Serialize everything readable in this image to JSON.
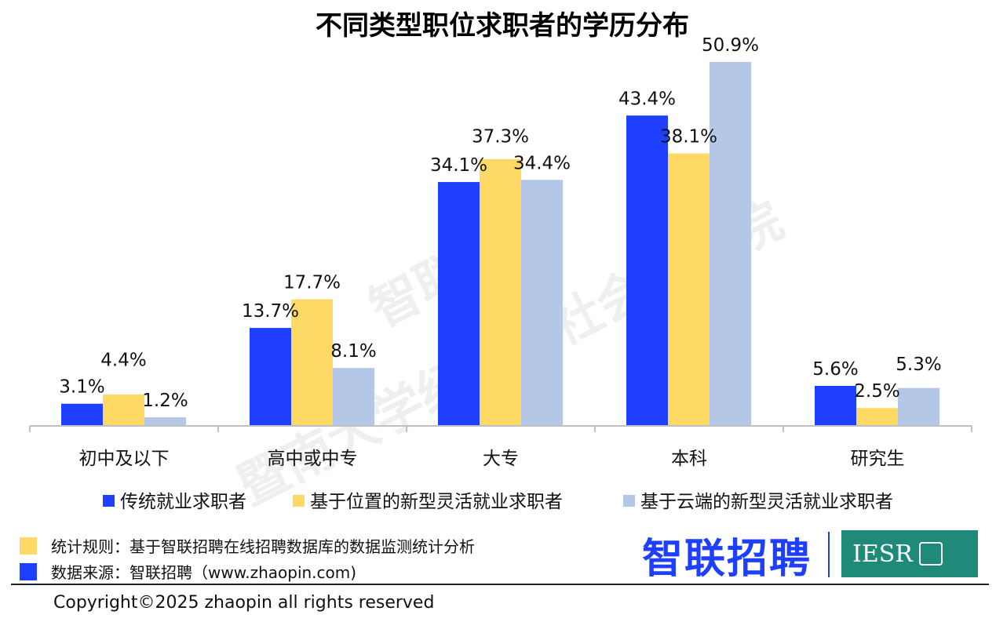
{
  "chart_data": {
    "type": "bar",
    "title": "不同类型职位求职者的学历分布",
    "categories": [
      "初中及以下",
      "高中或中专",
      "大专",
      "本科",
      "研究生"
    ],
    "series": [
      {
        "name": "传统就业求职者",
        "values": [
          3.1,
          13.7,
          34.1,
          43.4,
          5.6
        ],
        "labels": [
          "3.1%",
          "13.7%",
          "34.1%",
          "43.4%",
          "5.6%"
        ],
        "color": "#1f3fff"
      },
      {
        "name": "基于位置的新型灵活就业求职者",
        "values": [
          4.4,
          17.7,
          37.3,
          38.1,
          2.5
        ],
        "labels": [
          "4.4%",
          "17.7%",
          "37.3%",
          "38.1%",
          "2.5%"
        ],
        "color": "#ffd966"
      },
      {
        "name": "基于云端的新型灵活就业求职者",
        "values": [
          1.2,
          8.1,
          34.4,
          50.9,
          5.3
        ],
        "labels": [
          "1.2%",
          "8.1%",
          "34.4%",
          "50.9%",
          "5.3%"
        ],
        "color": "#b4c7e7"
      }
    ],
    "ylim": [
      0,
      51
    ],
    "grid": false,
    "legend_placement": "bottom"
  },
  "watermark": {
    "line1": "智联招聘",
    "line2": "暨南大学经济与社会研究院"
  },
  "notes": {
    "rule_text": "统计规则：基于智联招聘在线招聘数据库的数据监测统计分析",
    "rule_color": "#ffd966",
    "source_text": "数据来源：智联招聘（www.zhaopin.com)",
    "source_color": "#1f3fff"
  },
  "brand": {
    "logo_text": "智联招聘",
    "partner_text": "IESR"
  },
  "copyright": "Copyright©2025 zhaopin all rights reserved"
}
